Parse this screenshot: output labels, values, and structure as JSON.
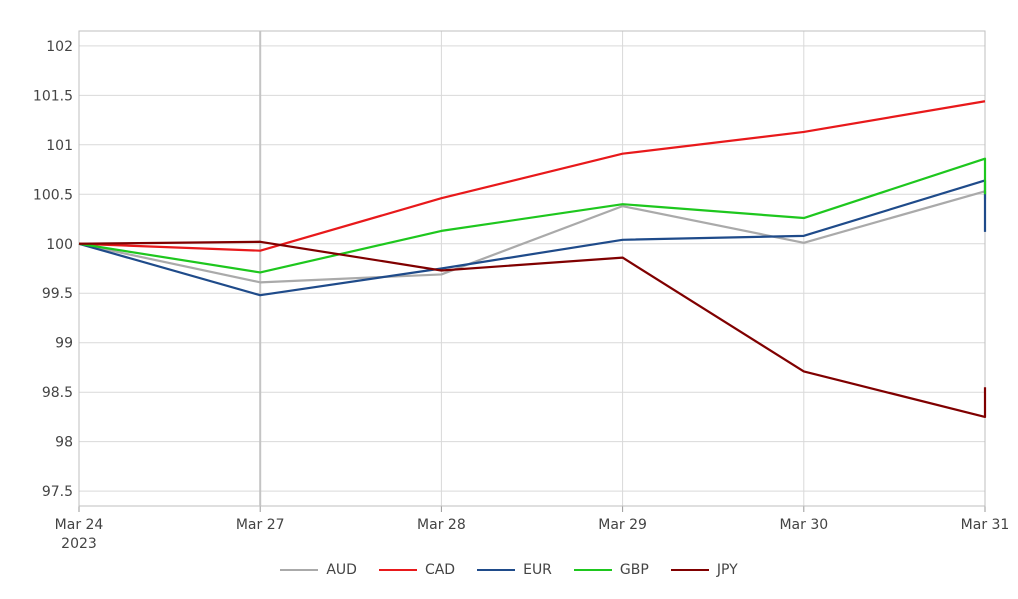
{
  "chart_data": {
    "type": "line",
    "title": "",
    "xlabel": "",
    "ylabel": "",
    "x": [
      "Mar 24",
      "Mar 27",
      "Mar 28",
      "Mar 29",
      "Mar 30",
      "Mar 31"
    ],
    "x_tick_labels": [
      "Mar 24",
      "Mar 27",
      "Mar 28",
      "Mar 29",
      "Mar 30",
      "Mar 31"
    ],
    "x_year_label": "2023",
    "ylim": [
      97.35,
      102.15
    ],
    "y_ticks": [
      97.5,
      98,
      98.5,
      99,
      99.5,
      100,
      100.5,
      101,
      101.5,
      102
    ],
    "y_tick_labels": [
      "97.5",
      "98",
      "98.5",
      "99",
      "99.5",
      "100",
      "100.5",
      "101",
      "101.5",
      "102"
    ],
    "grid": true,
    "legend_position": "bottom",
    "series": [
      {
        "name": "AUD",
        "color": "#aaaaaa",
        "values": [
          100.0,
          99.61,
          99.69,
          100.38,
          100.01,
          100.53
        ],
        "tail": 100.45
      },
      {
        "name": "CAD",
        "color": "#e8191b",
        "values": [
          100.0,
          99.93,
          100.46,
          100.91,
          101.13,
          101.44
        ],
        "tail": null
      },
      {
        "name": "EUR",
        "color": "#1f4b8a",
        "values": [
          100.0,
          99.48,
          99.75,
          100.04,
          100.08,
          100.64
        ],
        "tail": 100.12
      },
      {
        "name": "GBP",
        "color": "#1ec71e",
        "values": [
          100.0,
          99.71,
          100.13,
          100.4,
          100.26,
          100.86
        ],
        "tail": 100.5
      },
      {
        "name": "JPY",
        "color": "#800000",
        "values": [
          100.0,
          100.02,
          99.73,
          99.86,
          98.71,
          98.25
        ],
        "tail": 98.55
      }
    ]
  }
}
